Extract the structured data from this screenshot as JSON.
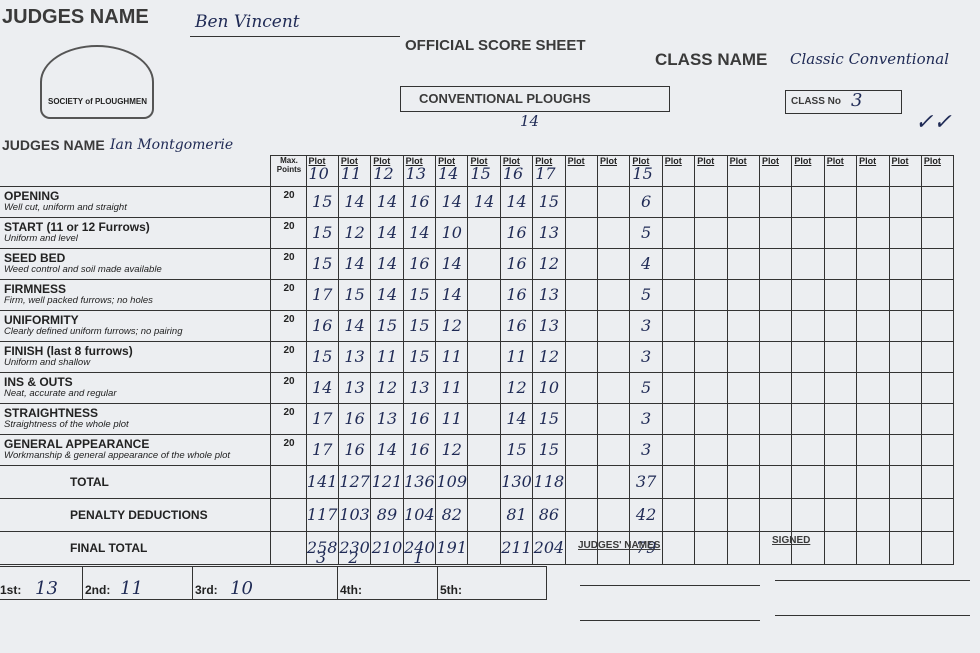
{
  "header": {
    "judge_label": "JUDGES NAME",
    "judge_name": "Ben Vincent",
    "title": "OFFICIAL SCORE SHEET",
    "class_name_label": "CLASS NAME",
    "class_name": "Classic Conventional",
    "subtitle": "CONVENTIONAL PLOUGHS",
    "class_no_label": "CLASS No",
    "class_no": "3",
    "judge2_label": "JUDGES NAME",
    "judge2_name": "Ian Montgomerie",
    "logo_text": "SOCIETY of PLOUGHMEN"
  },
  "table": {
    "max_points_label": "Max. Points",
    "plot_label": "Plot",
    "plot_note": "14",
    "plots": [
      10,
      11,
      12,
      13,
      14,
      15,
      16,
      17,
      null,
      null,
      15,
      null,
      null,
      null,
      null,
      null,
      null,
      null,
      null,
      null
    ],
    "criteria": [
      {
        "name": "OPENING",
        "description": "Well cut, uniform and straight",
        "max": 20,
        "scores": [
          15,
          14,
          14,
          16,
          14,
          14,
          14,
          15,
          null,
          null,
          6,
          null,
          null,
          null,
          null,
          null,
          null,
          null,
          null,
          null
        ]
      },
      {
        "name": "START (11 or 12 Furrows)",
        "description": "Uniform and level",
        "max": 20,
        "scores": [
          15,
          12,
          14,
          14,
          10,
          null,
          16,
          13,
          null,
          null,
          5,
          null,
          null,
          null,
          null,
          null,
          null,
          null,
          null,
          null
        ]
      },
      {
        "name": "SEED BED",
        "description": "Weed control and soil made available",
        "max": 20,
        "scores": [
          15,
          14,
          14,
          16,
          14,
          null,
          16,
          12,
          null,
          null,
          4,
          null,
          null,
          null,
          null,
          null,
          null,
          null,
          null,
          null
        ]
      },
      {
        "name": "FIRMNESS",
        "description": "Firm, well packed furrows; no holes",
        "max": 20,
        "scores": [
          17,
          15,
          14,
          15,
          14,
          null,
          16,
          13,
          null,
          null,
          5,
          null,
          null,
          null,
          null,
          null,
          null,
          null,
          null,
          null
        ]
      },
      {
        "name": "UNIFORMITY",
        "description": "Clearly defined uniform furrows; no pairing",
        "max": 20,
        "scores": [
          16,
          14,
          15,
          15,
          12,
          null,
          16,
          13,
          null,
          null,
          3,
          null,
          null,
          null,
          null,
          null,
          null,
          null,
          null,
          null
        ]
      },
      {
        "name": "FINISH (last 8 furrows)",
        "description": "Uniform and shallow",
        "max": 20,
        "scores": [
          15,
          13,
          11,
          15,
          11,
          null,
          11,
          12,
          null,
          null,
          3,
          null,
          null,
          null,
          null,
          null,
          null,
          null,
          null,
          null
        ]
      },
      {
        "name": "INS & OUTS",
        "description": "Neat, accurate and regular",
        "max": 20,
        "scores": [
          14,
          13,
          12,
          13,
          11,
          null,
          12,
          10,
          null,
          null,
          5,
          null,
          null,
          null,
          null,
          null,
          null,
          null,
          null,
          null
        ]
      },
      {
        "name": "STRAIGHTNESS",
        "description": "Straightness of the whole plot",
        "max": 20,
        "scores": [
          17,
          16,
          13,
          16,
          11,
          null,
          14,
          15,
          null,
          null,
          3,
          null,
          null,
          null,
          null,
          null,
          null,
          null,
          null,
          null
        ]
      },
      {
        "name": "GENERAL APPEARANCE",
        "description": "Workmanship & general appearance of the whole plot",
        "max": 20,
        "scores": [
          17,
          16,
          14,
          16,
          12,
          null,
          15,
          15,
          null,
          null,
          3,
          null,
          null,
          null,
          null,
          null,
          null,
          null,
          null,
          null
        ]
      }
    ],
    "totals": [
      {
        "label": "TOTAL",
        "scores": [
          141,
          127,
          121,
          136,
          109,
          null,
          130,
          118,
          null,
          null,
          37,
          null,
          null,
          null,
          null,
          null,
          null,
          null,
          null,
          null
        ]
      },
      {
        "label": "PENALTY DEDUCTIONS",
        "scores": [
          117,
          103,
          89,
          104,
          82,
          null,
          81,
          86,
          null,
          null,
          42,
          null,
          null,
          null,
          null,
          null,
          null,
          null,
          null,
          null
        ]
      },
      {
        "label": "FINAL TOTAL",
        "scores": [
          258,
          230,
          210,
          240,
          191,
          null,
          211,
          204,
          null,
          null,
          79,
          null,
          null,
          null,
          null,
          null,
          null,
          null,
          null,
          null
        ]
      }
    ],
    "rankings": [
      3,
      2,
      null,
      1,
      null,
      null,
      null,
      null,
      null,
      null,
      null,
      null,
      null,
      null,
      null,
      null,
      null,
      null,
      null,
      null
    ]
  },
  "footer": {
    "places": [
      {
        "label": "1st:",
        "value": "13"
      },
      {
        "label": "2nd:",
        "value": "11"
      },
      {
        "label": "3rd:",
        "value": "10"
      },
      {
        "label": "4th:"
      },
      {
        "label": "5th:"
      }
    ],
    "judges_names": "JUDGES' NAMES",
    "signed": "SIGNED"
  }
}
